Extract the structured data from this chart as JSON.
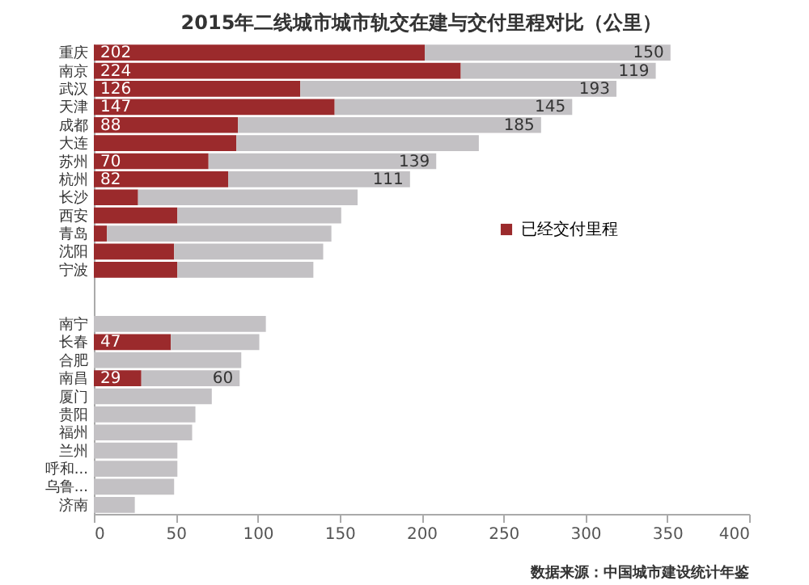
{
  "chart_data": {
    "type": "bar",
    "orientation": "horizontal",
    "stacked": true,
    "title": "2015年二线城市城市轨交在建与交付里程对比（公里）",
    "categories": [
      "重庆",
      "南京",
      "武汉",
      "天津",
      "成都",
      "大连",
      "苏州",
      "杭州",
      "长沙",
      "西安",
      "青岛",
      "沈阳",
      "宁波",
      null,
      null,
      "南宁",
      "长春",
      "合肥",
      "南昌",
      "厦门",
      "贵阳",
      "福州",
      "兰州",
      "呼和...",
      "乌鲁...",
      "济南"
    ],
    "series": [
      {
        "name": "已经交付里程",
        "color": "#9b2a2c",
        "values": [
          202,
          224,
          126,
          147,
          88,
          87,
          70,
          82,
          27,
          51,
          8,
          49,
          51,
          null,
          null,
          null,
          47,
          null,
          29,
          null,
          null,
          null,
          null,
          null,
          null,
          null
        ],
        "value_labels": [
          "202",
          "224",
          "126",
          "147",
          "88",
          null,
          "70",
          "82",
          null,
          null,
          null,
          null,
          null,
          null,
          null,
          null,
          "47",
          null,
          "29",
          null,
          null,
          null,
          null,
          null,
          null,
          null
        ]
      },
      {
        "color": "#c3c1c4",
        "values": [
          150,
          119,
          193,
          145,
          185,
          148,
          139,
          111,
          134,
          100,
          137,
          91,
          83,
          null,
          null,
          105,
          54,
          90,
          60,
          72,
          62,
          60,
          51,
          51,
          49,
          25
        ],
        "value_labels": [
          "150",
          "119",
          "193",
          "145",
          "185",
          null,
          "139",
          "111",
          null,
          null,
          null,
          null,
          null,
          null,
          null,
          null,
          null,
          null,
          "60",
          null,
          null,
          null,
          null,
          null,
          null,
          null
        ]
      }
    ],
    "xlim": [
      0,
      400
    ],
    "xticks": [
      0,
      50,
      100,
      150,
      200,
      250,
      300,
      350,
      400
    ],
    "grid": false,
    "legend": "right",
    "annotations": [
      "数据来源：中国城市建设统计年鉴"
    ]
  }
}
